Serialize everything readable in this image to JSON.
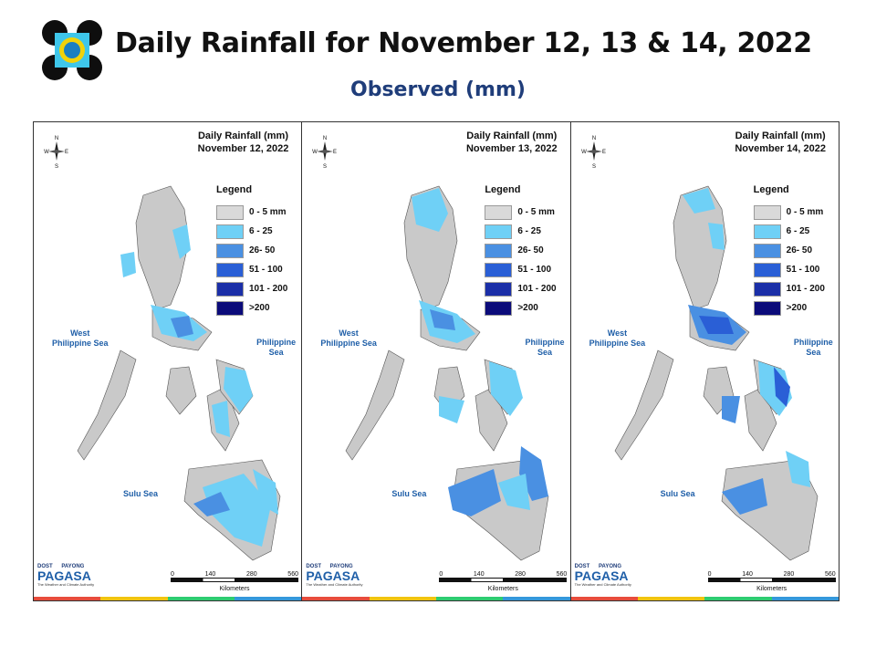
{
  "header": {
    "title": "Daily Rainfall for November 12, 13 & 14, 2022",
    "subtitle": "Observed (mm)"
  },
  "legend": {
    "title": "Legend",
    "classes": [
      {
        "label": "0 - 5 mm",
        "color": "#d9d9d9"
      },
      {
        "label": "6 - 25",
        "color": "#6fd0f6"
      },
      {
        "label": "26- 50",
        "color": "#4a90e2"
      },
      {
        "label": "51 - 100",
        "color": "#2a5fd6"
      },
      {
        "label": "101 - 200",
        "color": "#1b2fa8"
      },
      {
        "label": ">200",
        "color": "#0b0b7a"
      }
    ]
  },
  "panels": [
    {
      "title": "Daily Rainfall (mm)",
      "date": "November 12, 2022"
    },
    {
      "title": "Daily Rainfall (mm)",
      "date": "November 13, 2022"
    },
    {
      "title": "Daily Rainfall (mm)",
      "date": "November 14, 2022"
    }
  ],
  "seas": {
    "west_line1": "West",
    "west_line2": "Philippine Sea",
    "east": "Philippine Sea",
    "sulu": "Sulu Sea"
  },
  "compass": {
    "n": "N",
    "s": "S",
    "e": "E",
    "w": "W"
  },
  "scale": {
    "ticks": [
      "0",
      "140",
      "280",
      "560"
    ],
    "unit": "Kilometers"
  },
  "brand": {
    "top": "DOST",
    "name": "PAGASA",
    "tagline": "The Weather and Climate Authority",
    "small": "PAYONG"
  },
  "colors": {
    "land": "#c9c9c9",
    "light": "#6fd0f6",
    "mid": "#4a90e2",
    "dark": "#2a5fd6",
    "title_blue": "#1f3d7a"
  }
}
